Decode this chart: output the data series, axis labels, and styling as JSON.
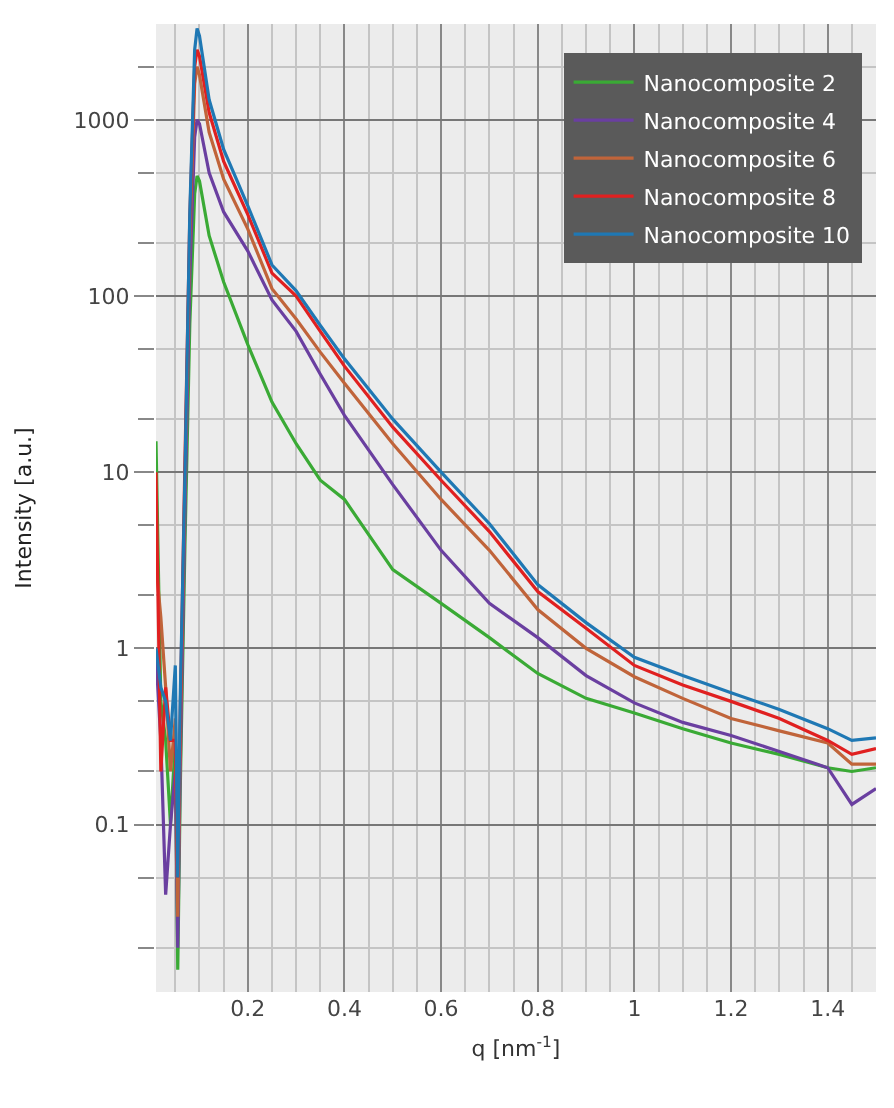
{
  "chart_data": {
    "type": "line",
    "xlabel": "q [nm$^{-1}$]",
    "ylabel": "Intensity [a.u.]",
    "x": [
      0.01,
      0.02,
      0.03,
      0.04,
      0.05,
      0.055,
      0.06,
      0.07,
      0.08,
      0.09,
      0.095,
      0.1,
      0.12,
      0.15,
      0.2,
      0.25,
      0.3,
      0.35,
      0.4,
      0.5,
      0.6,
      0.7,
      0.8,
      0.9,
      1.0,
      1.1,
      1.2,
      1.3,
      1.4,
      1.45,
      1.5
    ],
    "series": [
      {
        "name": "Nanocomposite 2",
        "color": "#3aaa35",
        "values": [
          15,
          0.5,
          0.3,
          0.1,
          0.3,
          0.015,
          0.15,
          4,
          70,
          380,
          480,
          450,
          220,
          120,
          53,
          25,
          14.5,
          9,
          7,
          2.8,
          1.8,
          1.15,
          0.72,
          0.52,
          0.43,
          0.35,
          0.29,
          0.25,
          0.21,
          0.2,
          0.21
        ]
      },
      {
        "name": "Nanocomposite 4",
        "color": "#6a3fa0",
        "values": [
          0.9,
          0.3,
          0.04,
          0.1,
          0.2,
          0.02,
          0.2,
          6,
          130,
          800,
          1000,
          950,
          500,
          300,
          180,
          95,
          63,
          36,
          21,
          8.5,
          3.6,
          1.8,
          1.15,
          0.7,
          0.49,
          0.38,
          0.32,
          0.26,
          0.21,
          0.13,
          0.16
        ]
      },
      {
        "name": "Nanocomposite 6",
        "color": "#c0643a",
        "values": [
          3,
          1.5,
          0.6,
          0.2,
          0.4,
          0.03,
          0.3,
          9,
          220,
          1600,
          2000,
          1800,
          850,
          460,
          240,
          110,
          74,
          48,
          32,
          14.5,
          7,
          3.6,
          1.66,
          1.0,
          0.69,
          0.52,
          0.4,
          0.34,
          0.29,
          0.22,
          0.22
        ]
      },
      {
        "name": "Nanocomposite 8",
        "color": "#e02020",
        "values": [
          10,
          0.2,
          0.6,
          0.3,
          0.3,
          0.05,
          0.4,
          12,
          280,
          2000,
          2500,
          2300,
          1100,
          580,
          290,
          135,
          100,
          63,
          40,
          18,
          9,
          4.6,
          2.1,
          1.3,
          0.8,
          0.62,
          0.5,
          0.4,
          0.3,
          0.25,
          0.27
        ]
      },
      {
        "name": "Nanocomposite 10",
        "color": "#1f78b4",
        "values": [
          1,
          0.6,
          0.5,
          0.3,
          0.8,
          0.05,
          0.5,
          10,
          300,
          2500,
          3300,
          3000,
          1300,
          680,
          325,
          150,
          107,
          68,
          44,
          20,
          10,
          5.1,
          2.3,
          1.4,
          0.89,
          0.7,
          0.56,
          0.45,
          0.35,
          0.3,
          0.31
        ]
      }
    ],
    "xlim": [
      0.01,
      1.5
    ],
    "ylim": [
      0.0112,
      3500
    ],
    "xticks": [
      0.2,
      0.4,
      0.6,
      0.8,
      1,
      1.2,
      1.4
    ],
    "yticks": [
      0.1,
      1,
      10,
      100,
      1000
    ],
    "log": "y",
    "grid": true,
    "legend": "top right",
    "line_style": "solid",
    "marker": "none"
  }
}
